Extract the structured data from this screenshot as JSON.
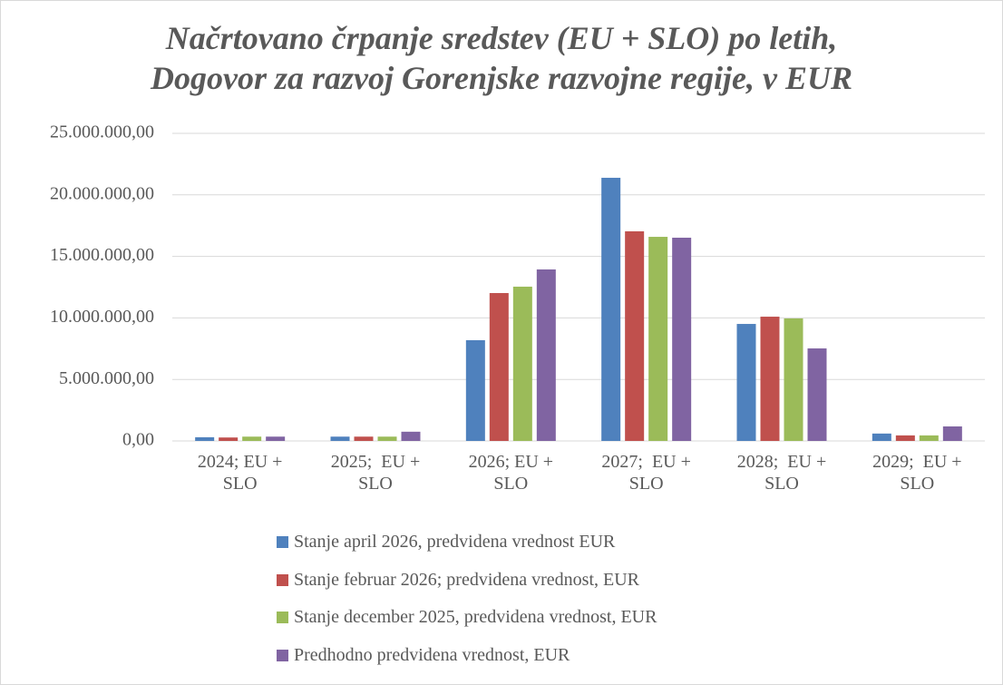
{
  "chart_data": {
    "type": "bar",
    "title": [
      "Načrtovano črpanje sredstev (EU + SLO) po letih,",
      "Dogovor za razvoj Gorenjske razvojne regije, v EUR"
    ],
    "categories": [
      "2024; EU + SLO",
      "2025;  EU + SLO",
      "2026; EU + SLO",
      "2027;  EU + SLO",
      "2028;  EU + SLO",
      "2029;  EU + SLO"
    ],
    "series": [
      {
        "name": "Stanje april 2026, predvidena vrednost EUR",
        "color": "#4f81bd",
        "values": [
          300000,
          350000,
          8190000,
          21390000,
          9510000,
          600000
        ]
      },
      {
        "name": "Stanje februar 2026; predvidena vrednost, EUR",
        "color": "#c0504d",
        "values": [
          280000,
          350000,
          12020000,
          17040000,
          10100000,
          450000
        ]
      },
      {
        "name": "Stanje december 2025, predvidena vrednost, EUR",
        "color": "#9bbb59",
        "values": [
          350000,
          350000,
          12540000,
          16590000,
          9960000,
          450000
        ]
      },
      {
        "name": "Predhodno predvidena vrednost, EUR",
        "color": "#8064a2",
        "values": [
          350000,
          750000,
          13940000,
          16520000,
          7520000,
          1180000
        ]
      }
    ],
    "ylim": [
      0,
      25000000
    ],
    "yticks": [
      {
        "value": 0,
        "label": "0,00"
      },
      {
        "value": 5000000,
        "label": "5.000.000,00"
      },
      {
        "value": 10000000,
        "label": "10.000.000,00"
      },
      {
        "value": 15000000,
        "label": "15.000.000,00"
      },
      {
        "value": 20000000,
        "label": "20.000.000,00"
      },
      {
        "value": 25000000,
        "label": "25.000.000,00"
      }
    ],
    "grid": true,
    "legend": "bottom"
  }
}
